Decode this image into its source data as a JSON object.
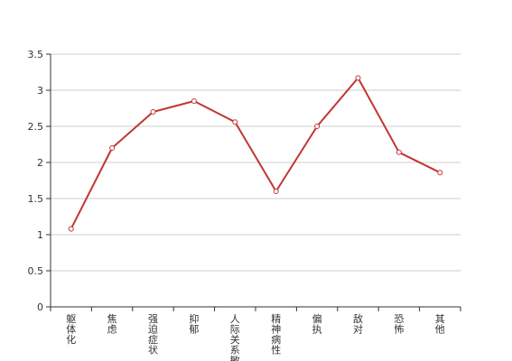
{
  "chart_data": {
    "type": "line",
    "title": "",
    "xlabel": "",
    "ylabel": "",
    "categories": [
      "躯体化",
      "焦虑",
      "强迫症状",
      "抑郁",
      "人际关系敏感",
      "精神病性",
      "偏执",
      "敌对",
      "恐怖",
      "其他"
    ],
    "series": [
      {
        "values": [
          1.08,
          2.2,
          2.7,
          2.85,
          2.56,
          1.6,
          2.5,
          3.17,
          2.14,
          1.86
        ],
        "color": "#c23531"
      }
    ],
    "ylim": [
      0,
      3.5
    ],
    "yticks": [
      "0",
      "0.5",
      "1",
      "1.5",
      "2",
      "2.5",
      "3",
      "3.5"
    ],
    "grid": true,
    "legend": "none"
  }
}
